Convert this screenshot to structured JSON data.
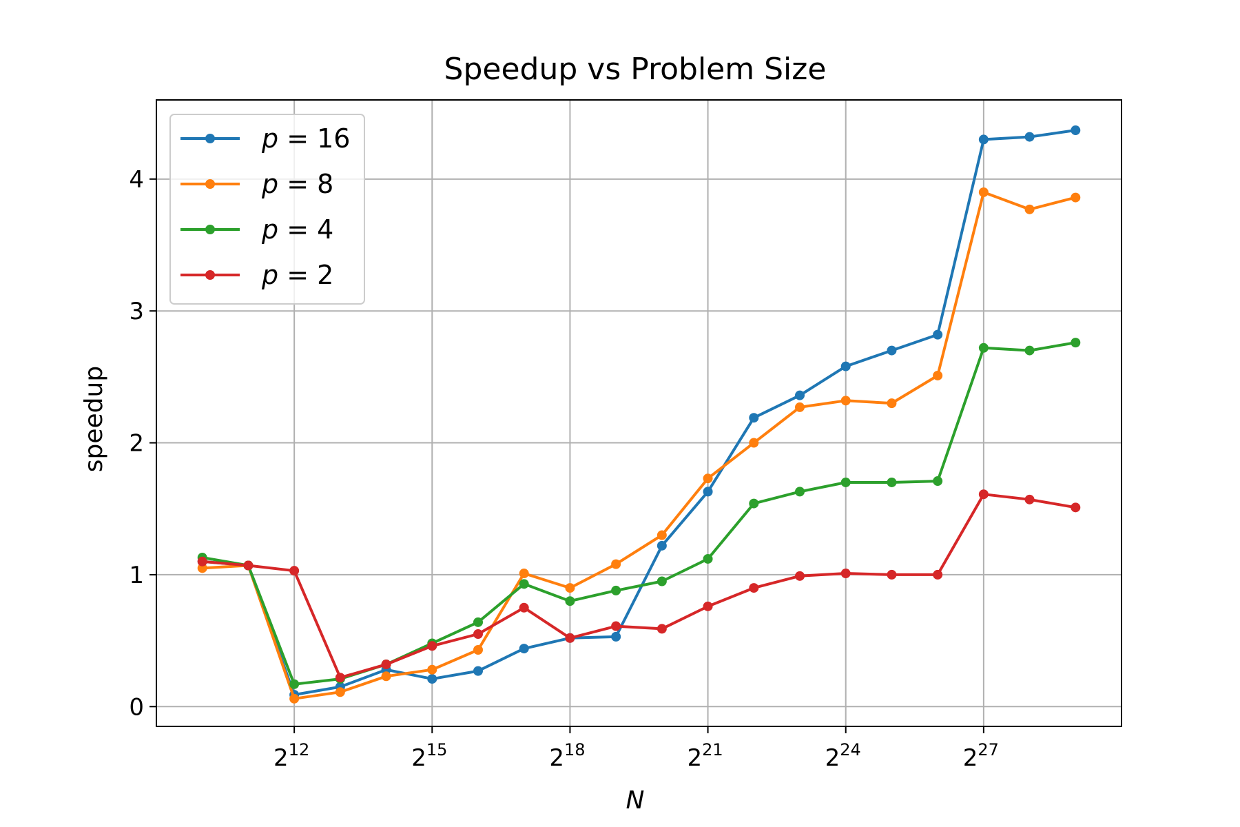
{
  "chart_data": {
    "type": "line",
    "title": "Speedup vs Problem Size",
    "xlabel": "N",
    "ylabel": "speedup",
    "x_scale": "log2",
    "x": [
      1024,
      2048,
      4096,
      8192,
      16384,
      32768,
      65536,
      131072,
      262144,
      524288,
      1048576,
      2097152,
      4194304,
      8388608,
      16777216,
      33554432,
      67108864,
      134217728,
      268435456,
      536870912
    ],
    "xlim": [
      512,
      1073741824
    ],
    "ylim": [
      -0.15,
      4.6
    ],
    "x_ticks": [
      {
        "value": 4096,
        "base": "2",
        "exp": "12"
      },
      {
        "value": 32768,
        "base": "2",
        "exp": "15"
      },
      {
        "value": 262144,
        "base": "2",
        "exp": "18"
      },
      {
        "value": 2097152,
        "base": "2",
        "exp": "21"
      },
      {
        "value": 16777216,
        "base": "2",
        "exp": "24"
      },
      {
        "value": 134217728,
        "base": "2",
        "exp": "27"
      }
    ],
    "y_ticks": [
      0,
      1,
      2,
      3,
      4
    ],
    "grid": true,
    "legend_position": "top-left",
    "series": [
      {
        "name": "p = 16",
        "var": "p",
        "val": "16",
        "color": "#1f77b4",
        "values": [
          1.1,
          1.07,
          0.09,
          0.15,
          0.28,
          0.21,
          0.27,
          0.44,
          0.52,
          0.53,
          1.22,
          1.63,
          2.19,
          2.36,
          2.58,
          2.7,
          2.82,
          4.3,
          4.32,
          4.37
        ]
      },
      {
        "name": "p = 8",
        "var": "p",
        "val": "8",
        "color": "#ff7f0e",
        "values": [
          1.05,
          1.07,
          0.06,
          0.11,
          0.23,
          0.28,
          0.43,
          1.01,
          0.9,
          1.08,
          1.3,
          1.73,
          2.0,
          2.27,
          2.32,
          2.3,
          2.51,
          3.9,
          3.77,
          3.86
        ]
      },
      {
        "name": "p = 4",
        "var": "p",
        "val": "4",
        "color": "#2ca02c",
        "values": [
          1.13,
          1.07,
          0.17,
          0.21,
          0.32,
          0.48,
          0.64,
          0.93,
          0.8,
          0.88,
          0.95,
          1.12,
          1.54,
          1.63,
          1.7,
          1.7,
          1.71,
          2.72,
          2.7,
          2.76
        ]
      },
      {
        "name": "p = 2",
        "var": "p",
        "val": "2",
        "color": "#d62728",
        "values": [
          1.1,
          1.07,
          1.03,
          0.22,
          0.32,
          0.46,
          0.55,
          0.75,
          0.52,
          0.61,
          0.59,
          0.76,
          0.9,
          0.99,
          1.01,
          1.0,
          1.0,
          1.61,
          1.57,
          1.51
        ]
      }
    ]
  }
}
